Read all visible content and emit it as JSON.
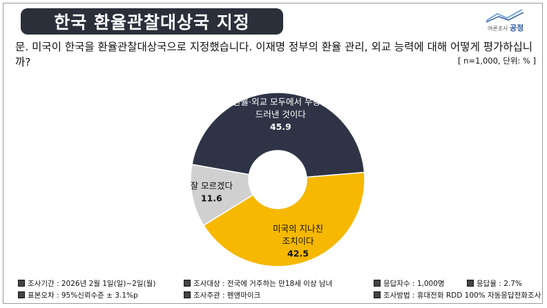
{
  "header": {
    "title": "한국 환율관찰대상국 지정",
    "logo_small": "여론조사",
    "logo_big": "공정"
  },
  "question": {
    "text": "문. 미국이 한국을 환율관찰대상국으로 지정했습니다. 이재명 정부의 환율 관리, 외교 능력에 대해 어떻게 평가하십니까?",
    "meta": "[ n=1,000, 단위: % ]"
  },
  "chart_data": {
    "type": "pie",
    "donut": true,
    "slices": [
      {
        "label": "환율·외교 모두에서 무능을 드러낸 것이다",
        "value": 45.9,
        "color": "#2e3446"
      },
      {
        "label": "미국의 지나친 조치이다",
        "value": 42.5,
        "color": "#f6b800"
      },
      {
        "label": "잘 모르겠다",
        "value": 11.6,
        "color": "#d0d0d0"
      }
    ],
    "value_strings": [
      "45.9",
      "42.5",
      "11.6"
    ],
    "label_lines": [
      [
        "환율·외교 모두에서 무능을",
        "드러낸 것이다"
      ],
      [
        "미국의 지나친",
        "조치이다"
      ],
      [
        "잘 모르겠다"
      ]
    ]
  },
  "footer": {
    "items": [
      "조사기간 : 2026년 2월 1일(일)~2일(월)",
      "조사대상 : 전국에 거주하는 만18세 이상 남녀",
      "응답자수 : 1,000명",
      "응답율 : 2.7%",
      "표본오차 : 95%신뢰수준 ± 3.1%p",
      "조사주관 : 펜앤마이크",
      "조사방법 : 휴대전화 RDD 100% 자동응답전화조사"
    ]
  }
}
